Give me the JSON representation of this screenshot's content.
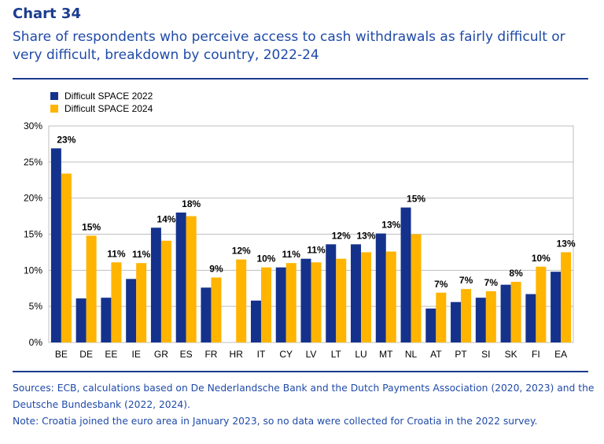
{
  "header": {
    "chart_label": "Chart 34",
    "title": "Share of respondents who perceive access to cash withdrawals as fairly difficult or very difficult, breakdown by country, 2022-24"
  },
  "colors": {
    "series_2022": "#14328c",
    "series_2024": "#ffb400",
    "accent": "#1c3d8f"
  },
  "chart_data": {
    "type": "bar",
    "title": "Share of respondents who perceive access to cash withdrawals as fairly difficult or very difficult, breakdown by country, 2022-24",
    "xlabel": "",
    "ylabel": "",
    "ylim": [
      0,
      30
    ],
    "yticks": [
      0,
      5,
      10,
      15,
      20,
      25,
      30
    ],
    "ytick_labels": [
      "0%",
      "5%",
      "10%",
      "15%",
      "20%",
      "25%",
      "30%"
    ],
    "grid": true,
    "legend_position": "top-left",
    "categories": [
      "BE",
      "DE",
      "EE",
      "IE",
      "GR",
      "ES",
      "FR",
      "HR",
      "IT",
      "CY",
      "LV",
      "LT",
      "LU",
      "MT",
      "NL",
      "AT",
      "PT",
      "SI",
      "SK",
      "FI",
      "EA"
    ],
    "series": [
      {
        "name": "Difficult SPACE 2022",
        "values": [
          26.9,
          6.1,
          6.2,
          8.8,
          15.9,
          18.0,
          7.6,
          null,
          5.8,
          10.4,
          11.6,
          13.6,
          13.6,
          15.1,
          18.7,
          4.7,
          5.6,
          6.2,
          8.0,
          6.7,
          9.8
        ]
      },
      {
        "name": "Difficult SPACE 2024",
        "values": [
          23.4,
          14.8,
          11.1,
          11.0,
          14.1,
          17.5,
          9.0,
          11.5,
          10.4,
          11.0,
          11.1,
          11.6,
          12.5,
          12.6,
          15.0,
          6.9,
          7.4,
          7.1,
          8.4,
          10.5,
          12.5
        ],
        "labels": [
          "23%",
          "15%",
          "11%",
          "11%",
          "14%",
          "18%",
          "9%",
          "12%",
          "10%",
          "11%",
          "11%",
          "12%",
          "13%",
          "13%",
          "15%",
          "7%",
          "7%",
          "7%",
          "8%",
          "10%",
          "13%"
        ]
      }
    ]
  },
  "footer": {
    "sources": "Sources: ECB, calculations based on De Nederlandsche Bank and the Dutch Payments Association (2020, 2023) and the Deutsche Bundesbank (2022, 2024).",
    "note": "Note: Croatia joined the euro area in January 2023, so no data were collected for Croatia in the 2022 survey."
  }
}
